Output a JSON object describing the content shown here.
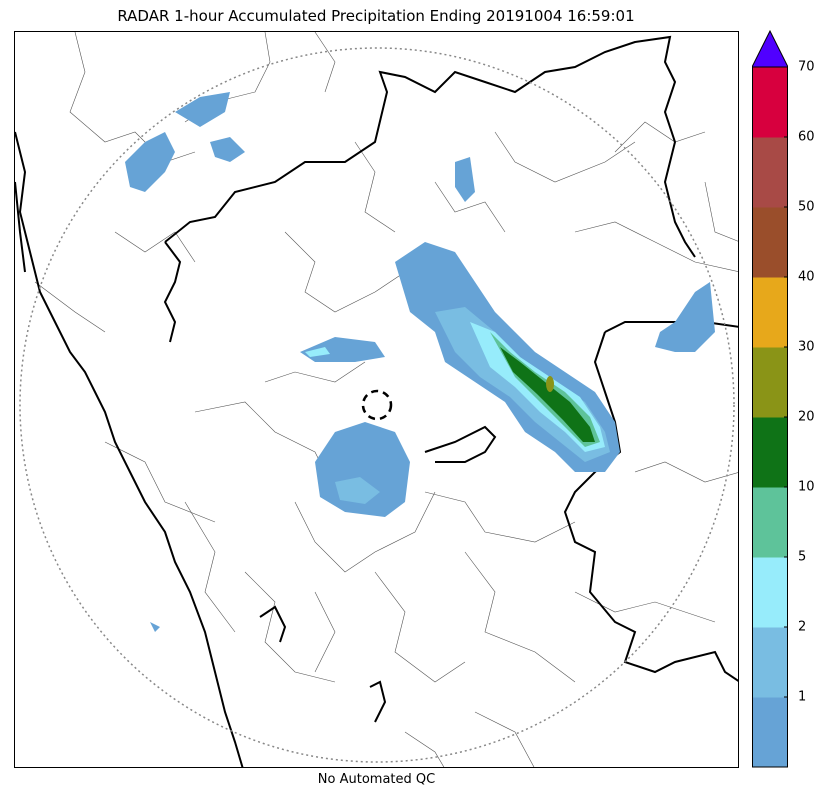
{
  "title": "RADAR 1-hour Accumulated Precipitation Ending 20191004 16:59:01",
  "footer": "No Automated QC",
  "colorbar": {
    "ticks": [
      "1",
      "2",
      "5",
      "10",
      "20",
      "30",
      "40",
      "50",
      "60",
      "70"
    ],
    "colors": [
      "#66a3d6",
      "#79bde2",
      "#97ecfb",
      "#5ec39a",
      "#0f7317",
      "#8a9417",
      "#e7a81b",
      "#9a4e2b",
      "#a84a46",
      "#d7003e"
    ],
    "extend_color": "#5000ff"
  },
  "map": {
    "features": [
      "radar-range-ring",
      "radar-site-marker",
      "state-borders",
      "district-borders",
      "coastline",
      "precipitation-field"
    ]
  }
}
